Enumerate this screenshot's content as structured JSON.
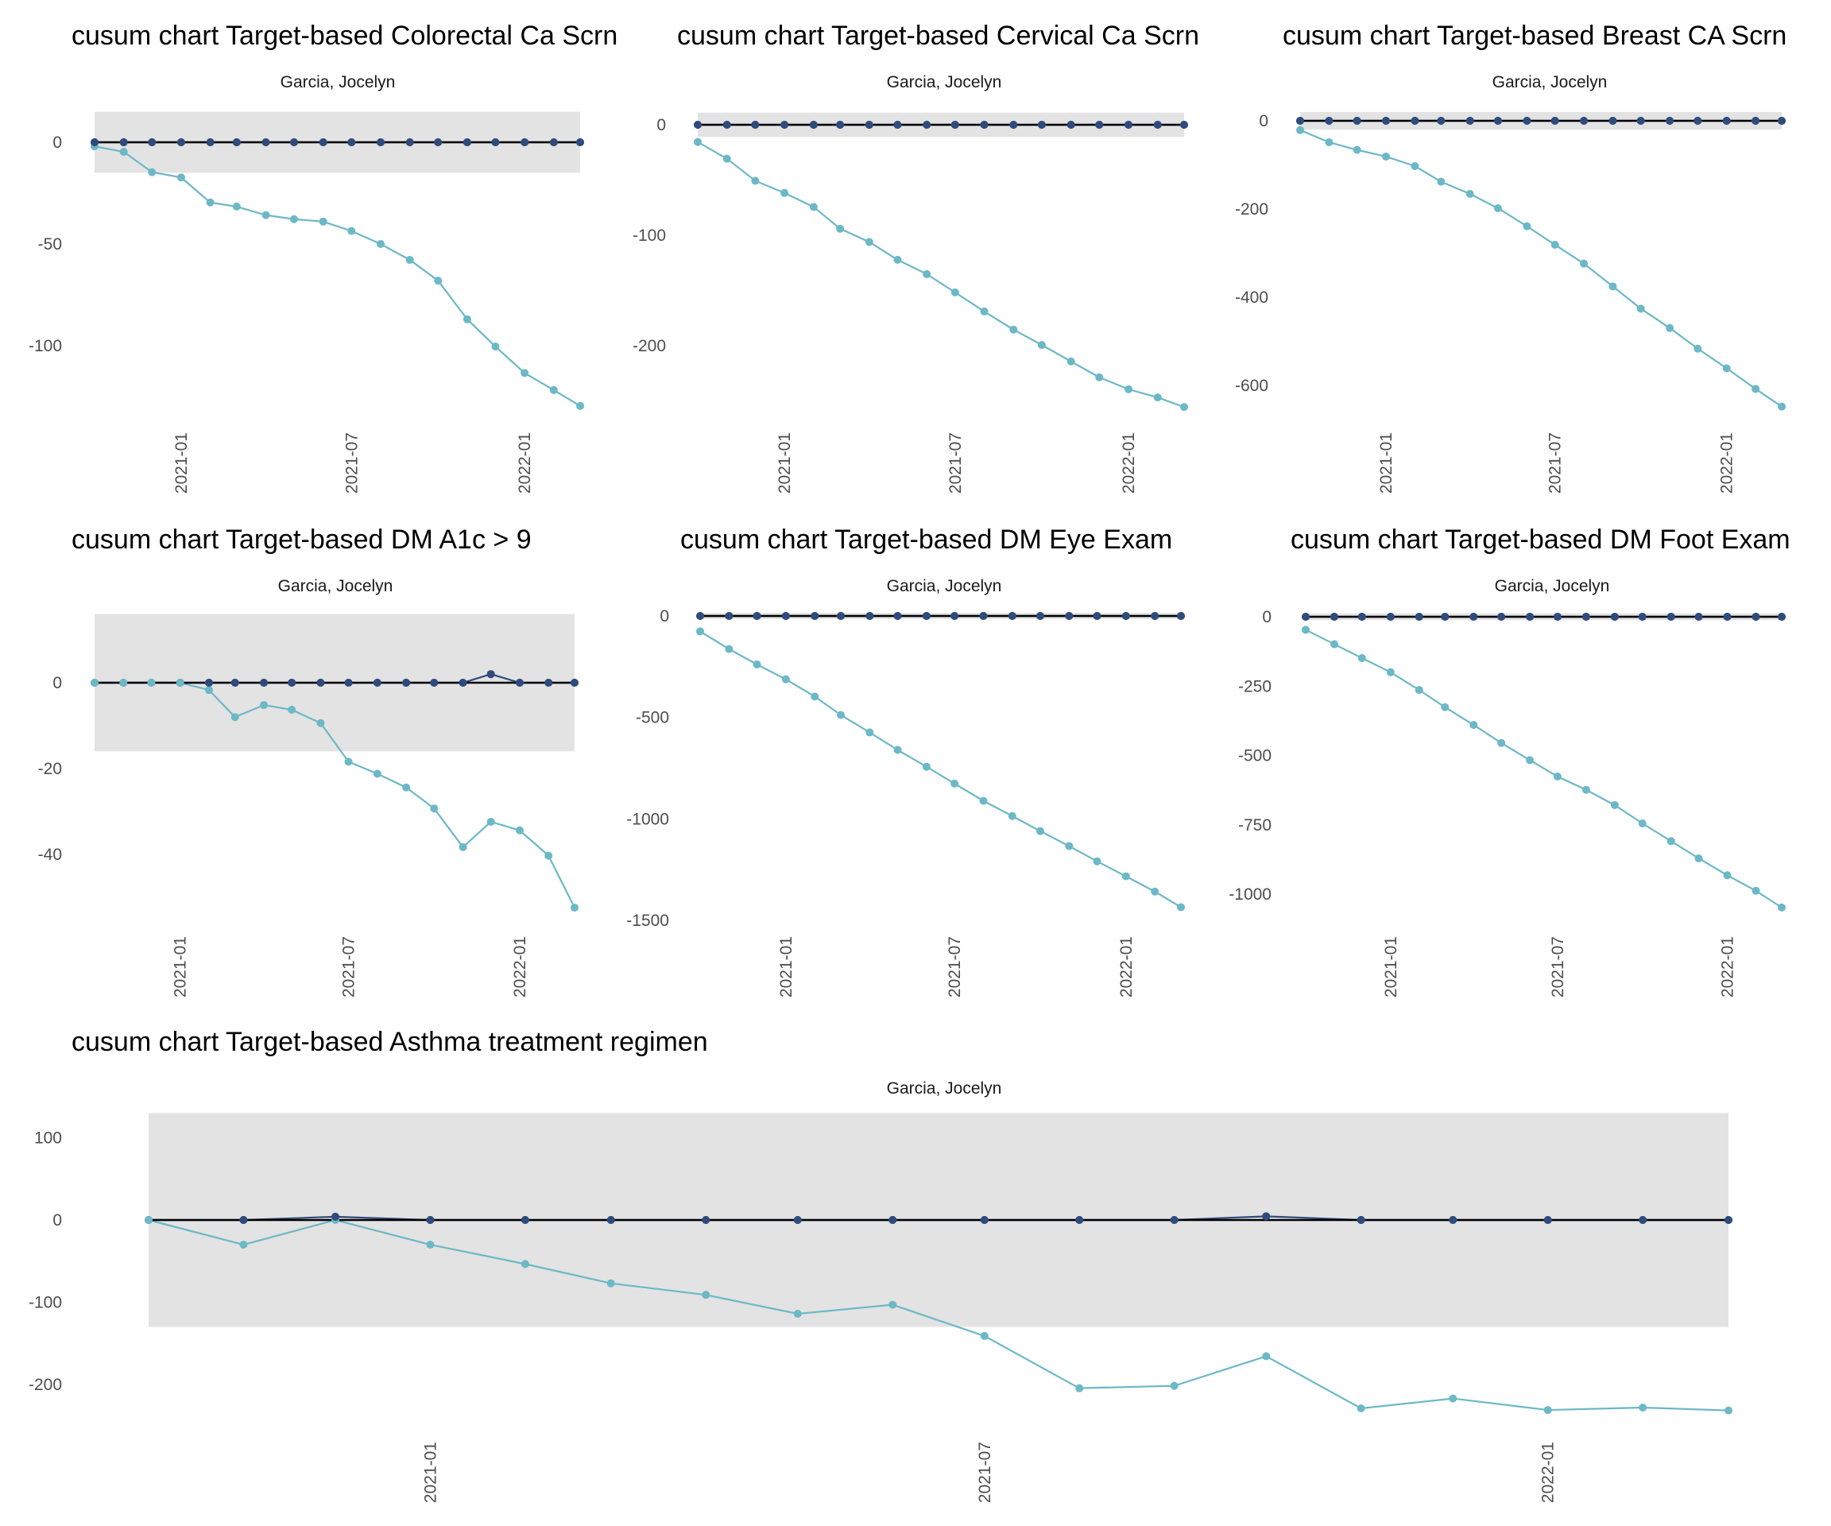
{
  "colors": {
    "band": "#e3e3e3",
    "upper_series": "#2f4b7c",
    "lower_series": "#6cb8c6",
    "target_line": "#000000"
  },
  "chart_data": [
    {
      "type": "line",
      "title": "cusum chart Target-based  Colorectal Ca Scrn",
      "subtitle": "Garcia, Jocelyn",
      "xlabel": "",
      "ylabel": "",
      "x": [
        "2020-10",
        "2020-11",
        "2020-12",
        "2021-01",
        "2021-02",
        "2021-03",
        "2021-04",
        "2021-05",
        "2021-06",
        "2021-07",
        "2021-08",
        "2021-09",
        "2021-10",
        "2021-11",
        "2021-12",
        "2022-01",
        "2022-02",
        "2022-03"
      ],
      "x_ticks": [
        "2021-01",
        "2021-07",
        "2022-01"
      ],
      "y_ticks": [
        0,
        -50,
        -100
      ],
      "ylim": [
        -133,
        17
      ],
      "band": [
        -15,
        15
      ],
      "target": 0,
      "series": [
        {
          "name": "upper",
          "values": [
            0,
            0,
            0,
            0,
            0,
            0,
            0,
            0,
            0,
            0,
            0,
            0,
            0,
            0,
            0,
            0,
            0,
            0
          ]
        },
        {
          "name": "lower",
          "values": [
            -2,
            -4.7,
            -14.7,
            -17.3,
            -29.6,
            -31.6,
            -35.8,
            -37.8,
            -39,
            -43.6,
            -50,
            -57.8,
            -68,
            -87,
            -100.4,
            -113.4,
            -121.8,
            -129.6
          ]
        }
      ],
      "grid": false,
      "legend": "none"
    },
    {
      "type": "line",
      "title": "cusum chart Target-based  Cervical Ca Scrn",
      "subtitle": "Garcia, Jocelyn",
      "xlabel": "",
      "ylabel": "",
      "x": [
        "2020-10",
        "2020-11",
        "2020-12",
        "2021-01",
        "2021-02",
        "2021-03",
        "2021-04",
        "2021-05",
        "2021-06",
        "2021-07",
        "2021-08",
        "2021-09",
        "2021-10",
        "2021-11",
        "2021-12",
        "2022-01",
        "2022-02",
        "2022-03"
      ],
      "x_ticks": [
        "2021-01",
        "2021-07",
        "2022-01"
      ],
      "y_ticks": [
        0,
        -100,
        -200
      ],
      "ylim": [
        -262,
        14
      ],
      "band": [
        -11,
        11
      ],
      "target": 0,
      "series": [
        {
          "name": "upper",
          "values": [
            0,
            0,
            0,
            0,
            0,
            0,
            0,
            0,
            0,
            0,
            0,
            0,
            0,
            0,
            0,
            0,
            0,
            0
          ]
        },
        {
          "name": "lower",
          "values": [
            -15.6,
            -30.7,
            -50.7,
            -61.7,
            -74.4,
            -94.1,
            -106.1,
            -122.2,
            -135.2,
            -151.7,
            -169,
            -185.4,
            -199.3,
            -214.2,
            -228.6,
            -239.4,
            -246.8,
            -255.5
          ]
        }
      ],
      "grid": false,
      "legend": "none"
    },
    {
      "type": "line",
      "title": "cusum chart Target-based  Breast CA Scrn",
      "subtitle": "Garcia, Jocelyn",
      "xlabel": "",
      "ylabel": "",
      "x": [
        "2020-10",
        "2020-11",
        "2020-12",
        "2021-01",
        "2021-02",
        "2021-03",
        "2021-04",
        "2021-05",
        "2021-06",
        "2021-07",
        "2021-08",
        "2021-09",
        "2021-10",
        "2021-11",
        "2021-12",
        "2022-01",
        "2022-02",
        "2022-03"
      ],
      "x_ticks": [
        "2021-01",
        "2021-07",
        "2022-01"
      ],
      "y_ticks": [
        0,
        -200,
        -400,
        -600
      ],
      "ylim": [
        -665,
        25
      ],
      "band": [
        -20,
        20
      ],
      "target": 0,
      "series": [
        {
          "name": "upper",
          "values": [
            0,
            0,
            0,
            0,
            0,
            0,
            0,
            0,
            0,
            0,
            0,
            0,
            0,
            0,
            0,
            0,
            0,
            0
          ]
        },
        {
          "name": "lower",
          "values": [
            -21,
            -48.6,
            -66,
            -81,
            -102.7,
            -138,
            -165.8,
            -198.2,
            -239,
            -281,
            -323.7,
            -375.4,
            -425.8,
            -469.7,
            -516.5,
            -561,
            -607.8,
            -648
          ]
        }
      ],
      "grid": false,
      "legend": "none"
    },
    {
      "type": "line",
      "title": "cusum chart Target-based  DM A1c > 9",
      "subtitle": "Garcia, Jocelyn",
      "xlabel": "",
      "ylabel": "",
      "x": [
        "2020-10",
        "2020-11",
        "2020-12",
        "2021-01",
        "2021-02",
        "2021-03",
        "2021-04",
        "2021-05",
        "2021-06",
        "2021-07",
        "2021-08",
        "2021-09",
        "2021-10",
        "2021-11",
        "2021-12",
        "2022-01",
        "2022-02",
        "2022-03"
      ],
      "x_ticks": [
        "2021-01",
        "2021-07",
        "2022-01"
      ],
      "y_ticks": [
        0,
        -20,
        -40
      ],
      "ylim": [
        -54,
        17
      ],
      "band": [
        -16,
        16
      ],
      "target": 0,
      "series": [
        {
          "name": "upper",
          "values": [
            0,
            0,
            0,
            0,
            0,
            0,
            0,
            0,
            0,
            0,
            0,
            0,
            0,
            0,
            2,
            0,
            0,
            0
          ]
        },
        {
          "name": "lower",
          "values": [
            0,
            0,
            0,
            0,
            -1.7,
            -8,
            -5.2,
            -6.3,
            -9.4,
            -18.4,
            -21.2,
            -24.4,
            -29.3,
            -38.3,
            -32.4,
            -34.4,
            -40.3,
            -52.4
          ]
        }
      ],
      "grid": false,
      "legend": "none"
    },
    {
      "type": "line",
      "title": "cusum chart Target-based  DM Eye Exam",
      "subtitle": "Garcia, Jocelyn",
      "xlabel": "",
      "ylabel": "",
      "x": [
        "2020-10",
        "2020-11",
        "2020-12",
        "2021-01",
        "2021-02",
        "2021-03",
        "2021-04",
        "2021-05",
        "2021-06",
        "2021-07",
        "2021-08",
        "2021-09",
        "2021-10",
        "2021-11",
        "2021-12",
        "2022-01",
        "2022-02",
        "2022-03"
      ],
      "x_ticks": [
        "2021-01",
        "2021-07",
        "2022-01"
      ],
      "y_ticks": [
        0,
        -500,
        -1000,
        -1500
      ],
      "ylim": [
        -1500,
        15
      ],
      "band": [
        -15,
        15
      ],
      "target": 0,
      "series": [
        {
          "name": "upper",
          "values": [
            0,
            0,
            0,
            0,
            0,
            0,
            0,
            0,
            0,
            0,
            0,
            0,
            0,
            0,
            0,
            0,
            0,
            0
          ]
        },
        {
          "name": "lower",
          "values": [
            -76,
            -163,
            -239,
            -312,
            -397,
            -488,
            -574,
            -660,
            -743,
            -826,
            -911,
            -986,
            -1060,
            -1134,
            -1209,
            -1283,
            -1358,
            -1435
          ]
        }
      ],
      "grid": false,
      "legend": "none"
    },
    {
      "type": "line",
      "title": "cusum chart Target-based  DM Foot Exam",
      "subtitle": "Garcia, Jocelyn",
      "xlabel": "",
      "ylabel": "",
      "x": [
        "2020-10",
        "2020-11",
        "2020-12",
        "2021-01",
        "2021-02",
        "2021-03",
        "2021-04",
        "2021-05",
        "2021-06",
        "2021-07",
        "2021-08",
        "2021-09",
        "2021-10",
        "2021-11",
        "2021-12",
        "2022-01",
        "2022-02",
        "2022-03"
      ],
      "x_ticks": [
        "2021-01",
        "2021-07",
        "2022-01"
      ],
      "y_ticks": [
        0,
        -250,
        -500,
        -750,
        -1000
      ],
      "ylim": [
        -1060,
        12
      ],
      "band": [
        -12,
        12
      ],
      "target": 0,
      "series": [
        {
          "name": "upper",
          "values": [
            0,
            0,
            0,
            0,
            0,
            0,
            0,
            0,
            0,
            0,
            0,
            0,
            0,
            0,
            0,
            0,
            0,
            0
          ]
        },
        {
          "name": "lower",
          "values": [
            -47,
            -99,
            -149,
            -200,
            -264,
            -326,
            -390,
            -455,
            -517,
            -576,
            -624,
            -679,
            -745,
            -809,
            -871,
            -932,
            -988,
            -1048
          ]
        }
      ],
      "grid": false,
      "legend": "none"
    },
    {
      "type": "line",
      "title": "cusum chart Target-based  Asthma treatment regimen",
      "subtitle": "Garcia, Jocelyn",
      "xlabel": "",
      "ylabel": "",
      "x": [
        "2020-10",
        "2020-11",
        "2020-12",
        "2021-01",
        "2021-02",
        "2021-03",
        "2021-04",
        "2021-05",
        "2021-06",
        "2021-07",
        "2021-08",
        "2021-09",
        "2021-10",
        "2021-11",
        "2021-12",
        "2022-01",
        "2022-02",
        "2022-03"
      ],
      "x_ticks": [
        "2021-01",
        "2021-07",
        "2022-01"
      ],
      "y_ticks": [
        100,
        0,
        -100,
        -200
      ],
      "ylim": [
        -240,
        130
      ],
      "band": [
        -130,
        130
      ],
      "target": 0,
      "series": [
        {
          "name": "upper",
          "values": [
            0,
            0,
            4,
            0,
            0,
            0,
            0,
            0,
            0,
            0,
            0,
            0,
            4.5,
            0,
            0,
            0,
            0,
            0
          ]
        },
        {
          "name": "lower",
          "values": [
            0,
            -30,
            0,
            -30,
            -53.5,
            -77,
            -91,
            -114,
            -103,
            -141,
            -204.5,
            -201.6,
            -165.6,
            -229,
            -217,
            -231,
            -228,
            -231.5
          ]
        }
      ],
      "grid": false,
      "legend": "none"
    }
  ]
}
